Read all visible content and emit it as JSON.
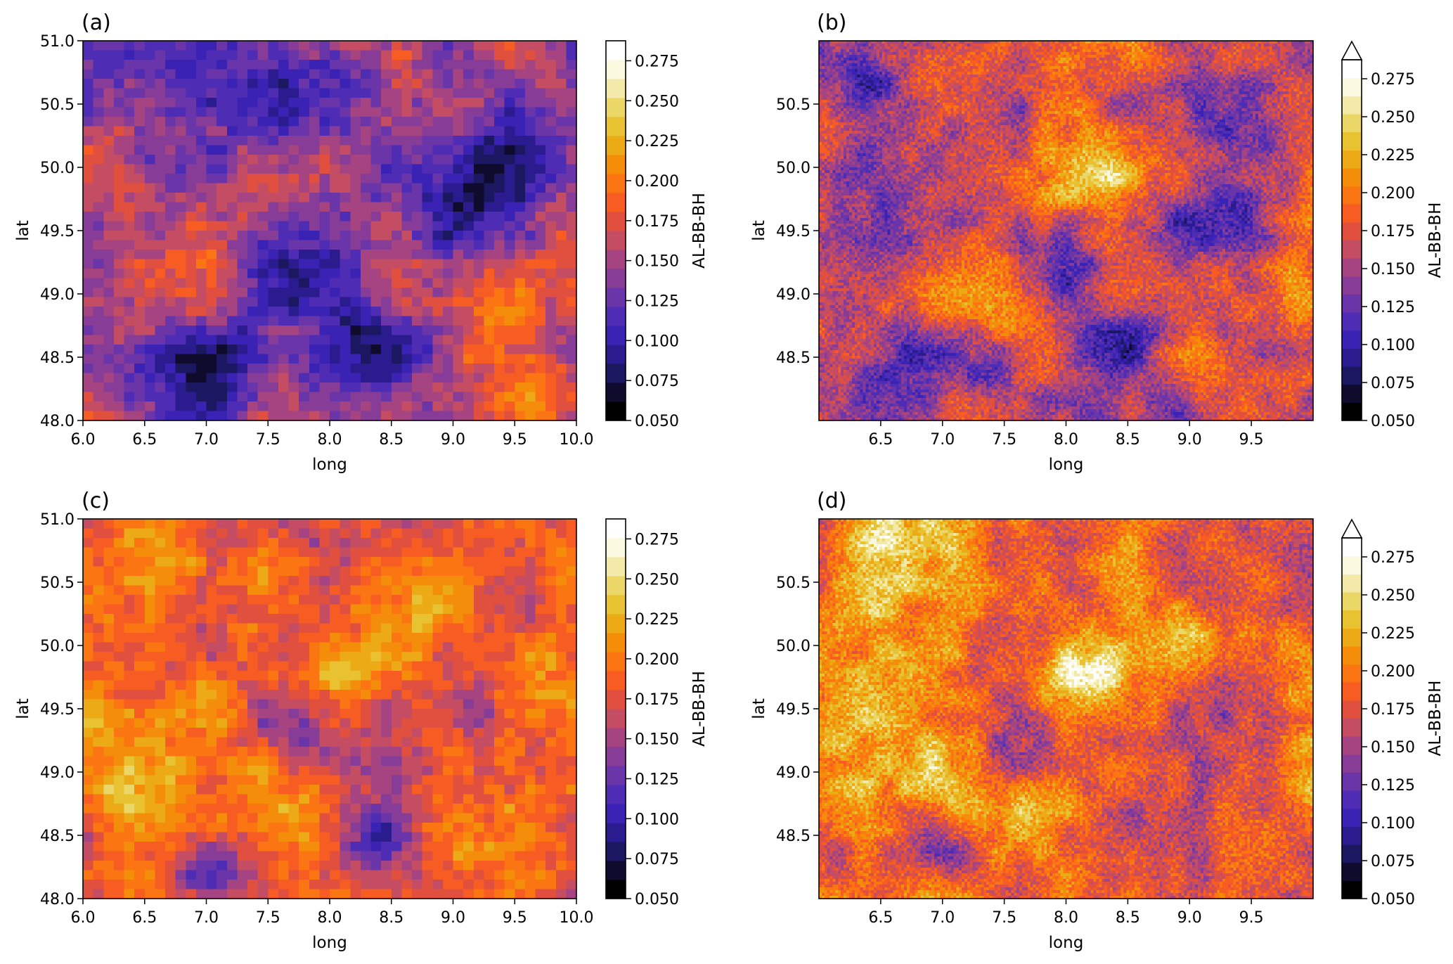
{
  "chart_data": [
    {
      "panel_label": "(a)",
      "type": "heatmap",
      "xlabel": "long",
      "ylabel": "lat",
      "colorbar_label": "AL-BB-BH",
      "colorbar_extend": "neither",
      "xlim": [
        6.0,
        10.0
      ],
      "ylim": [
        48.0,
        51.0
      ],
      "x_ticks": [
        6.0,
        6.5,
        7.0,
        7.5,
        8.0,
        8.5,
        9.0,
        9.5,
        10.0
      ],
      "x_tick_labels": [
        "6.0",
        "6.5",
        "7.0",
        "7.5",
        "8.0",
        "8.5",
        "9.0",
        "9.5",
        "10.0"
      ],
      "y_ticks": [
        48.0,
        48.5,
        49.0,
        49.5,
        50.0,
        50.5,
        51.0
      ],
      "y_tick_labels": [
        "48.0",
        "48.5",
        "49.0",
        "49.5",
        "50.0",
        "50.5",
        "51.0"
      ],
      "grid": [
        48,
        40
      ],
      "base_level": 0.16,
      "features": [
        {
          "lon": 7.0,
          "lat": 48.5,
          "value": 0.07,
          "radius": 0.45
        },
        {
          "lon": 8.3,
          "lat": 48.6,
          "value": 0.08,
          "radius": 0.4
        },
        {
          "lon": 7.8,
          "lat": 49.3,
          "value": 0.1,
          "radius": 0.5
        },
        {
          "lon": 9.1,
          "lat": 49.7,
          "value": 0.1,
          "radius": 0.4
        },
        {
          "lon": 9.5,
          "lat": 50.2,
          "value": 0.11,
          "radius": 0.45
        },
        {
          "lon": 6.6,
          "lat": 50.7,
          "value": 0.12,
          "radius": 0.5
        },
        {
          "lon": 7.6,
          "lat": 50.5,
          "value": 0.12,
          "radius": 0.4
        },
        {
          "lon": 8.0,
          "lat": 50.6,
          "value": 0.12,
          "radius": 0.35
        },
        {
          "lon": 6.5,
          "lat": 49.0,
          "value": 0.19,
          "radius": 0.5
        },
        {
          "lon": 9.8,
          "lat": 48.3,
          "value": 0.21,
          "radius": 0.4
        },
        {
          "lon": 9.4,
          "lat": 48.7,
          "value": 0.19,
          "radius": 0.35
        }
      ],
      "noise": 0.022,
      "seed": 11
    },
    {
      "panel_label": "(b)",
      "type": "heatmap",
      "xlabel": "long",
      "ylabel": "lat",
      "colorbar_label": "AL-BB-BH",
      "colorbar_extend": "max",
      "xlim": [
        6.0,
        10.0
      ],
      "ylim": [
        48.0,
        51.0
      ],
      "x_ticks": [
        6.5,
        7.0,
        7.5,
        8.0,
        8.5,
        9.0,
        9.5
      ],
      "x_tick_labels": [
        "6.5",
        "7.0",
        "7.5",
        "8.0",
        "8.5",
        "9.0",
        "9.5"
      ],
      "y_ticks": [
        48.5,
        49.0,
        49.5,
        50.0,
        50.5
      ],
      "y_tick_labels": [
        "48.5",
        "49.0",
        "49.5",
        "50.0",
        "50.5"
      ],
      "grid": [
        180,
        135
      ],
      "base_level": 0.178,
      "features": [
        {
          "lon": 6.9,
          "lat": 48.45,
          "value": 0.11,
          "radius": 0.35
        },
        {
          "lon": 8.45,
          "lat": 48.55,
          "value": 0.1,
          "radius": 0.35
        },
        {
          "lon": 7.8,
          "lat": 49.3,
          "value": 0.12,
          "radius": 0.4
        },
        {
          "lon": 9.1,
          "lat": 49.6,
          "value": 0.12,
          "radius": 0.35
        },
        {
          "lon": 9.4,
          "lat": 50.2,
          "value": 0.13,
          "radius": 0.35
        },
        {
          "lon": 6.3,
          "lat": 50.7,
          "value": 0.12,
          "radius": 0.3
        },
        {
          "lon": 8.2,
          "lat": 49.9,
          "value": 0.23,
          "radius": 0.35
        },
        {
          "lon": 7.6,
          "lat": 48.9,
          "value": 0.22,
          "radius": 0.35
        },
        {
          "lon": 6.4,
          "lat": 49.0,
          "value": 0.21,
          "radius": 0.45
        },
        {
          "lon": 9.7,
          "lat": 48.4,
          "value": 0.2,
          "radius": 0.3
        }
      ],
      "noise": 0.03,
      "seed": 23
    },
    {
      "panel_label": "(c)",
      "type": "heatmap",
      "xlabel": "long",
      "ylabel": "lat",
      "colorbar_label": "AL-BB-BH",
      "colorbar_extend": "neither",
      "xlim": [
        6.0,
        10.0
      ],
      "ylim": [
        48.0,
        51.0
      ],
      "x_ticks": [
        6.0,
        6.5,
        7.0,
        7.5,
        8.0,
        8.5,
        9.0,
        9.5,
        10.0
      ],
      "x_tick_labels": [
        "6.0",
        "6.5",
        "7.0",
        "7.5",
        "8.0",
        "8.5",
        "9.0",
        "9.5",
        "10.0"
      ],
      "y_ticks": [
        48.0,
        48.5,
        49.0,
        49.5,
        50.0,
        50.5,
        51.0
      ],
      "y_tick_labels": [
        "48.0",
        "48.5",
        "49.0",
        "49.5",
        "50.0",
        "50.5",
        "51.0"
      ],
      "grid": [
        48,
        40
      ],
      "base_level": 0.195,
      "features": [
        {
          "lon": 6.4,
          "lat": 48.9,
          "value": 0.24,
          "radius": 0.5
        },
        {
          "lon": 8.15,
          "lat": 49.85,
          "value": 0.25,
          "radius": 0.3
        },
        {
          "lon": 6.7,
          "lat": 50.7,
          "value": 0.23,
          "radius": 0.35
        },
        {
          "lon": 8.8,
          "lat": 50.4,
          "value": 0.23,
          "radius": 0.3
        },
        {
          "lon": 7.6,
          "lat": 48.6,
          "value": 0.23,
          "radius": 0.35
        },
        {
          "lon": 9.8,
          "lat": 49.8,
          "value": 0.22,
          "radius": 0.35
        },
        {
          "lon": 8.35,
          "lat": 48.5,
          "value": 0.12,
          "radius": 0.35
        },
        {
          "lon": 7.0,
          "lat": 48.3,
          "value": 0.13,
          "radius": 0.35
        },
        {
          "lon": 7.8,
          "lat": 49.3,
          "value": 0.14,
          "radius": 0.35
        },
        {
          "lon": 9.2,
          "lat": 49.5,
          "value": 0.15,
          "radius": 0.3
        },
        {
          "lon": 9.5,
          "lat": 50.3,
          "value": 0.16,
          "radius": 0.3
        }
      ],
      "noise": 0.02,
      "seed": 37
    },
    {
      "panel_label": "(d)",
      "type": "heatmap",
      "xlabel": "long",
      "ylabel": "lat",
      "colorbar_label": "AL-BB-BH",
      "colorbar_extend": "max",
      "xlim": [
        6.0,
        10.0
      ],
      "ylim": [
        48.0,
        51.0
      ],
      "x_ticks": [
        6.5,
        7.0,
        7.5,
        8.0,
        8.5,
        9.0,
        9.5
      ],
      "x_tick_labels": [
        "6.5",
        "7.0",
        "7.5",
        "8.0",
        "8.5",
        "9.0",
        "9.5"
      ],
      "y_ticks": [
        48.5,
        49.0,
        49.5,
        50.0,
        50.5
      ],
      "y_tick_labels": [
        "48.5",
        "49.0",
        "49.5",
        "50.0",
        "50.5"
      ],
      "grid": [
        180,
        135
      ],
      "base_level": 0.198,
      "features": [
        {
          "lon": 6.4,
          "lat": 49.0,
          "value": 0.26,
          "radius": 0.5
        },
        {
          "lon": 8.15,
          "lat": 49.8,
          "value": 0.26,
          "radius": 0.3
        },
        {
          "lon": 7.5,
          "lat": 48.7,
          "value": 0.24,
          "radius": 0.4
        },
        {
          "lon": 6.7,
          "lat": 50.8,
          "value": 0.24,
          "radius": 0.35
        },
        {
          "lon": 8.45,
          "lat": 48.55,
          "value": 0.12,
          "radius": 0.3
        },
        {
          "lon": 7.0,
          "lat": 48.4,
          "value": 0.14,
          "radius": 0.3
        },
        {
          "lon": 7.8,
          "lat": 49.3,
          "value": 0.16,
          "radius": 0.35
        },
        {
          "lon": 9.2,
          "lat": 49.6,
          "value": 0.16,
          "radius": 0.3
        },
        {
          "lon": 9.5,
          "lat": 50.2,
          "value": 0.17,
          "radius": 0.3
        }
      ],
      "noise": 0.03,
      "seed": 51
    }
  ],
  "colorbar": {
    "tick_values": [
      0.05,
      0.075,
      0.1,
      0.125,
      0.15,
      0.175,
      0.2,
      0.225,
      0.25,
      0.275
    ],
    "tick_labels": [
      "0.050",
      "0.075",
      "0.100",
      "0.125",
      "0.150",
      "0.175",
      "0.200",
      "0.225",
      "0.250",
      "0.275"
    ],
    "range": [
      0.05,
      0.2875
    ],
    "levels": 19,
    "colors": [
      "#000000",
      "#0e0b2c",
      "#1b1760",
      "#2a1c8e",
      "#3a22b4",
      "#4f2cb4",
      "#6a35a8",
      "#873c97",
      "#a54480",
      "#c44c63",
      "#e1503f",
      "#f75c22",
      "#fb7513",
      "#f48e0a",
      "#ecaa16",
      "#e8c230",
      "#ebd767",
      "#f3e9a8",
      "#fbf8e0",
      "#ffffff"
    ]
  }
}
